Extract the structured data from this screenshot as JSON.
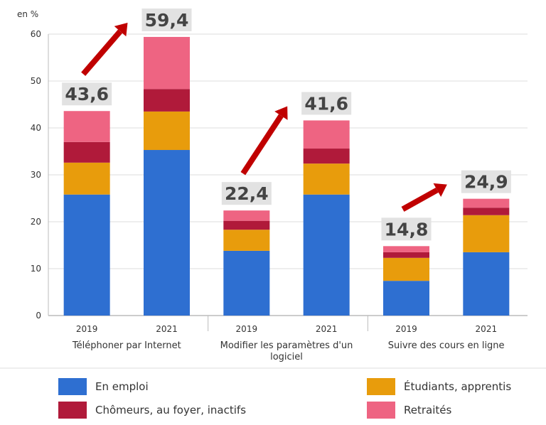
{
  "chart_data": {
    "type": "stacked_bar",
    "ylabel": "en %",
    "categories": [
      "2019",
      "2021",
      "2019",
      "2021",
      "2019",
      "2021"
    ],
    "groups": [
      "Téléphoner par Internet",
      "Modifier les paramètres d'un logiciel",
      "Suivre des cours en ligne"
    ],
    "series": [
      {
        "name": "En emploi",
        "color": "#2e6fd1",
        "values": [
          25.8,
          35.3,
          13.8,
          25.8,
          7.4,
          13.5
        ]
      },
      {
        "name": "Étudiants, apprentis",
        "color": "#e89c0c",
        "values": [
          6.8,
          8.2,
          4.5,
          6.6,
          4.9,
          7.9
        ]
      },
      {
        "name": "Chômeurs, au foyer, inactifs",
        "color": "#b01a3a",
        "values": [
          4.4,
          4.8,
          1.9,
          3.2,
          1.2,
          1.6
        ]
      },
      {
        "name": "Retraités",
        "color": "#ee6482",
        "values": [
          6.6,
          11.1,
          2.2,
          6.0,
          1.3,
          1.9
        ]
      }
    ],
    "totals": {
      "values": [
        43.6,
        59.4,
        22.4,
        41.6,
        14.8,
        24.9
      ],
      "value_labels": [
        "43,6",
        "59,4",
        "22,4",
        "41,6",
        "14,8",
        "24,9"
      ]
    },
    "ylim": [
      0,
      60
    ],
    "yticks": [
      0,
      10,
      20,
      30,
      40,
      50,
      60
    ],
    "grid": true
  }
}
